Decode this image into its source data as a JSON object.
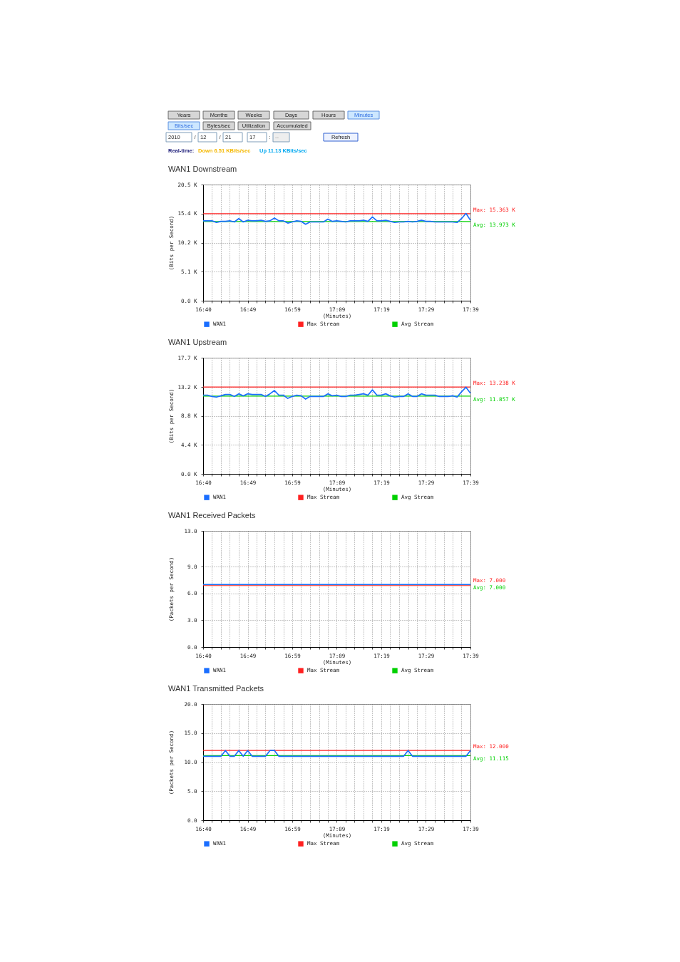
{
  "chart_data": [
    {
      "type": "other",
      "categories": [
        "Years",
        "Months",
        "Weeks",
        "Days",
        "Hours",
        "Minutes",
        "Bits/sec",
        "Bytes/sec",
        "Utilization",
        "Accumulated",
        "2010",
        "12",
        "21",
        "17",
        "--",
        "Refresh"
      ],
      "colors": [
        "#d6d6d6",
        "#d6d6d6",
        "#d6d6d6",
        "#d6d6d6",
        "#d6d6d6",
        "#cde7ff",
        "#cde7ff",
        "#d6d6d6",
        "#d6d6d6",
        "#d6d6d6",
        "#ffffff",
        "#ffffff",
        "#ffffff",
        "#ffffff",
        "#eeeeee",
        "#edf2ff"
      ],
      "annotations": [
        "/",
        "/",
        ":",
        "Real-time:",
        "Down 6.51 KBits/sec",
        "Up 11.13 KBits/sec"
      ]
    },
    {
      "type": "line",
      "title": "WAN1 Downstream",
      "xlabel": "(Minutes)",
      "ylabel": "(Bits per Second)",
      "xlim": [
        16.6592,
        17.6425
      ],
      "xticks": [
        {
          "value": 16.6592,
          "label": "16:40"
        },
        {
          "value": 16.6919,
          "label": null
        },
        {
          "value": 16.7247,
          "label": null
        },
        {
          "value": 16.7575,
          "label": null
        },
        {
          "value": 16.7903,
          "label": null
        },
        {
          "value": 16.8231,
          "label": "16:49"
        },
        {
          "value": 16.8558,
          "label": null
        },
        {
          "value": 16.8886,
          "label": null
        },
        {
          "value": 16.9214,
          "label": null
        },
        {
          "value": 16.9542,
          "label": null
        },
        {
          "value": 16.9869,
          "label": "16:59"
        },
        {
          "value": 17.0197,
          "label": null
        },
        {
          "value": 17.0525,
          "label": null
        },
        {
          "value": 17.0853,
          "label": null
        },
        {
          "value": 17.1181,
          "label": null
        },
        {
          "value": 17.1508,
          "label": "17:09"
        },
        {
          "value": 17.1836,
          "label": null
        },
        {
          "value": 17.2164,
          "label": null
        },
        {
          "value": 17.2492,
          "label": null
        },
        {
          "value": 17.2819,
          "label": null
        },
        {
          "value": 17.3147,
          "label": "17:19"
        },
        {
          "value": 17.3475,
          "label": null
        },
        {
          "value": 17.3803,
          "label": null
        },
        {
          "value": 17.4131,
          "label": null
        },
        {
          "value": 17.4458,
          "label": null
        },
        {
          "value": 17.4786,
          "label": "17:29"
        },
        {
          "value": 17.5114,
          "label": null
        },
        {
          "value": 17.5442,
          "label": null
        },
        {
          "value": 17.5769,
          "label": null
        },
        {
          "value": 17.6097,
          "label": null
        },
        {
          "value": 17.6425,
          "label": "17:39"
        }
      ],
      "ylim": [
        0,
        20.5
      ],
      "yticks": [
        {
          "value": 0,
          "label": "0.0 K"
        },
        {
          "value": 5.1,
          "label": "5.1 K"
        },
        {
          "value": 10.2,
          "label": "10.2 K"
        },
        {
          "value": 15.4,
          "label": "15.4 K"
        },
        {
          "value": 20.5,
          "label": "20.5 K"
        }
      ],
      "grid": true,
      "legend": "bottom",
      "x": [
        16.6592,
        16.6756,
        16.6919,
        16.7083,
        16.7247,
        16.7411,
        16.7575,
        16.7739,
        16.7903,
        16.8067,
        16.8231,
        16.8394,
        16.8558,
        16.8722,
        16.8886,
        16.905,
        16.9214,
        16.9378,
        16.9542,
        16.9706,
        16.9869,
        17.0033,
        17.0197,
        17.0361,
        17.0525,
        17.0689,
        17.0853,
        17.1017,
        17.1181,
        17.1344,
        17.1508,
        17.1672,
        17.1836,
        17.2,
        17.2164,
        17.2328,
        17.2492,
        17.2656,
        17.2819,
        17.2983,
        17.3147,
        17.3311,
        17.3475,
        17.3639,
        17.3803,
        17.3967,
        17.4131,
        17.4294,
        17.4458,
        17.4622,
        17.4786,
        17.495,
        17.5114,
        17.5278,
        17.5442,
        17.5606,
        17.5769,
        17.5933,
        17.6097,
        17.6261,
        17.6425
      ],
      "series": [
        {
          "name": "WAN1",
          "color": "#1a6eff",
          "values": [
            14.1,
            14.1,
            14.1,
            13.8,
            14.0,
            14.0,
            14.1,
            13.9,
            14.5,
            13.9,
            14.2,
            14.1,
            14.1,
            14.2,
            14.0,
            14.1,
            14.6,
            14.1,
            14.1,
            13.7,
            13.9,
            14.1,
            14.0,
            13.5,
            13.9,
            13.9,
            13.9,
            13.9,
            14.4,
            14.0,
            14.1,
            14.0,
            13.9,
            14.1,
            14.1,
            14.1,
            14.2,
            14.0,
            14.8,
            14.1,
            14.1,
            14.2,
            14.0,
            13.8,
            13.9,
            13.9,
            14.0,
            13.9,
            14.0,
            14.2,
            14.0,
            14.0,
            13.9,
            13.9,
            13.9,
            13.9,
            13.9,
            13.8,
            14.5,
            15.4,
            14.2
          ]
        },
        {
          "name": "Max Stream",
          "color": "#ff2020",
          "x": [
            16.6592,
            17.6425
          ],
          "values": [
            15.363,
            15.363
          ]
        },
        {
          "name": "Avg Stream",
          "color": "#00d000",
          "x": [
            16.6592,
            17.6425
          ],
          "values": [
            13.973,
            13.973
          ]
        }
      ],
      "annotations": [
        "Max: 15.363 K",
        "Avg: 13.973 K"
      ]
    },
    {
      "type": "line",
      "title": "WAN1 Upstream",
      "xlabel": "(Minutes)",
      "ylabel": "(Bits per Second)",
      "xlim": [
        16.6592,
        17.6425
      ],
      "xticks": [
        {
          "value": 16.6592,
          "label": "16:40"
        },
        {
          "value": 16.6919,
          "label": null
        },
        {
          "value": 16.7247,
          "label": null
        },
        {
          "value": 16.7575,
          "label": null
        },
        {
          "value": 16.7903,
          "label": null
        },
        {
          "value": 16.8231,
          "label": "16:49"
        },
        {
          "value": 16.8558,
          "label": null
        },
        {
          "value": 16.8886,
          "label": null
        },
        {
          "value": 16.9214,
          "label": null
        },
        {
          "value": 16.9542,
          "label": null
        },
        {
          "value": 16.9869,
          "label": "16:59"
        },
        {
          "value": 17.0197,
          "label": null
        },
        {
          "value": 17.0525,
          "label": null
        },
        {
          "value": 17.0853,
          "label": null
        },
        {
          "value": 17.1181,
          "label": null
        },
        {
          "value": 17.1508,
          "label": "17:09"
        },
        {
          "value": 17.1836,
          "label": null
        },
        {
          "value": 17.2164,
          "label": null
        },
        {
          "value": 17.2492,
          "label": null
        },
        {
          "value": 17.2819,
          "label": null
        },
        {
          "value": 17.3147,
          "label": "17:19"
        },
        {
          "value": 17.3475,
          "label": null
        },
        {
          "value": 17.3803,
          "label": null
        },
        {
          "value": 17.4131,
          "label": null
        },
        {
          "value": 17.4458,
          "label": null
        },
        {
          "value": 17.4786,
          "label": "17:29"
        },
        {
          "value": 17.5114,
          "label": null
        },
        {
          "value": 17.5442,
          "label": null
        },
        {
          "value": 17.5769,
          "label": null
        },
        {
          "value": 17.6097,
          "label": null
        },
        {
          "value": 17.6425,
          "label": "17:39"
        }
      ],
      "ylim": [
        0,
        17.7
      ],
      "yticks": [
        {
          "value": 0,
          "label": "0.0 K"
        },
        {
          "value": 4.4,
          "label": "4.4 K"
        },
        {
          "value": 8.8,
          "label": "8.8 K"
        },
        {
          "value": 13.2,
          "label": "13.2 K"
        },
        {
          "value": 17.7,
          "label": "17.7 K"
        }
      ],
      "grid": true,
      "legend": "bottom",
      "x": [
        16.6592,
        16.6756,
        16.6919,
        16.7083,
        16.7247,
        16.7411,
        16.7575,
        16.7739,
        16.7903,
        16.8067,
        16.8231,
        16.8394,
        16.8558,
        16.8722,
        16.8886,
        16.905,
        16.9214,
        16.9378,
        16.9542,
        16.9706,
        16.9869,
        17.0033,
        17.0197,
        17.0361,
        17.0525,
        17.0689,
        17.0853,
        17.1017,
        17.1181,
        17.1344,
        17.1508,
        17.1672,
        17.1836,
        17.2,
        17.2164,
        17.2328,
        17.2492,
        17.2656,
        17.2819,
        17.2983,
        17.3147,
        17.3311,
        17.3475,
        17.3639,
        17.3803,
        17.3967,
        17.4131,
        17.4294,
        17.4458,
        17.4622,
        17.4786,
        17.495,
        17.5114,
        17.5278,
        17.5442,
        17.5606,
        17.5769,
        17.5933,
        17.6097,
        17.6261,
        17.6425
      ],
      "series": [
        {
          "name": "WAN1",
          "color": "#1a6eff",
          "values": [
            12.0,
            12.0,
            11.8,
            11.7,
            11.9,
            12.1,
            12.1,
            11.8,
            12.2,
            11.9,
            12.2,
            12.1,
            12.1,
            12.1,
            11.8,
            12.2,
            12.7,
            12.0,
            12.0,
            11.5,
            11.8,
            12.0,
            11.9,
            11.4,
            11.8,
            11.8,
            11.8,
            11.8,
            12.2,
            11.9,
            12.0,
            11.8,
            11.8,
            12.0,
            12.0,
            12.1,
            12.2,
            12.0,
            12.8,
            12.0,
            12.0,
            12.2,
            11.9,
            11.7,
            11.8,
            11.8,
            12.2,
            11.8,
            11.8,
            12.2,
            12.0,
            12.0,
            12.0,
            11.8,
            11.8,
            11.8,
            11.9,
            11.7,
            12.5,
            13.2,
            12.3
          ]
        },
        {
          "name": "Max Stream",
          "color": "#ff2020",
          "x": [
            16.6592,
            17.6425
          ],
          "values": [
            13.238,
            13.238
          ]
        },
        {
          "name": "Avg Stream",
          "color": "#00d000",
          "x": [
            16.6592,
            17.6425
          ],
          "values": [
            11.857,
            11.857
          ]
        }
      ],
      "annotations": [
        "Max: 13.238 K",
        "Avg: 11.857 K"
      ]
    },
    {
      "type": "line",
      "title": "WAN1 Received Packets",
      "xlabel": "(Minutes)",
      "ylabel": "(Packets per Second)",
      "xlim": [
        16.6592,
        17.6425
      ],
      "xticks": [
        {
          "value": 16.6592,
          "label": "16:40"
        },
        {
          "value": 16.6919,
          "label": null
        },
        {
          "value": 16.7247,
          "label": null
        },
        {
          "value": 16.7575,
          "label": null
        },
        {
          "value": 16.7903,
          "label": null
        },
        {
          "value": 16.8231,
          "label": "16:49"
        },
        {
          "value": 16.8558,
          "label": null
        },
        {
          "value": 16.8886,
          "label": null
        },
        {
          "value": 16.9214,
          "label": null
        },
        {
          "value": 16.9542,
          "label": null
        },
        {
          "value": 16.9869,
          "label": "16:59"
        },
        {
          "value": 17.0197,
          "label": null
        },
        {
          "value": 17.0525,
          "label": null
        },
        {
          "value": 17.0853,
          "label": null
        },
        {
          "value": 17.1181,
          "label": null
        },
        {
          "value": 17.1508,
          "label": "17:09"
        },
        {
          "value": 17.1836,
          "label": null
        },
        {
          "value": 17.2164,
          "label": null
        },
        {
          "value": 17.2492,
          "label": null
        },
        {
          "value": 17.2819,
          "label": null
        },
        {
          "value": 17.3147,
          "label": "17:19"
        },
        {
          "value": 17.3475,
          "label": null
        },
        {
          "value": 17.3803,
          "label": null
        },
        {
          "value": 17.4131,
          "label": null
        },
        {
          "value": 17.4458,
          "label": null
        },
        {
          "value": 17.4786,
          "label": "17:29"
        },
        {
          "value": 17.5114,
          "label": null
        },
        {
          "value": 17.5442,
          "label": null
        },
        {
          "value": 17.5769,
          "label": null
        },
        {
          "value": 17.6097,
          "label": null
        },
        {
          "value": 17.6425,
          "label": "17:39"
        }
      ],
      "ylim": [
        0,
        13
      ],
      "yticks": [
        {
          "value": 0,
          "label": "0.0"
        },
        {
          "value": 3,
          "label": "3.0"
        },
        {
          "value": 6,
          "label": "6.0"
        },
        {
          "value": 9,
          "label": "9.0"
        },
        {
          "value": 13,
          "label": "13.0"
        }
      ],
      "grid": true,
      "legend": "bottom",
      "series": [
        {
          "name": "WAN1",
          "color": "#1a6eff",
          "x": [
            16.6592,
            17.6425
          ],
          "values": [
            7,
            7
          ]
        },
        {
          "name": "Max Stream",
          "color": "#ff2020",
          "x": [
            16.6592,
            17.6425
          ],
          "values": [
            7.0,
            7.0
          ]
        },
        {
          "name": "Avg Stream",
          "color": "#00d000",
          "values": [
            null,
            null
          ]
        }
      ],
      "annotations": [
        "Max: 7.000",
        "Avg: 7.000"
      ]
    },
    {
      "type": "line",
      "title": "WAN1 Transmitted Packets",
      "xlabel": "(Minutes)",
      "ylabel": "(Packets per Second)",
      "xlim": [
        16.6592,
        17.6425
      ],
      "xticks": [
        {
          "value": 16.6592,
          "label": "16:40"
        },
        {
          "value": 16.6919,
          "label": null
        },
        {
          "value": 16.7247,
          "label": null
        },
        {
          "value": 16.7575,
          "label": null
        },
        {
          "value": 16.7903,
          "label": null
        },
        {
          "value": 16.8231,
          "label": "16:49"
        },
        {
          "value": 16.8558,
          "label": null
        },
        {
          "value": 16.8886,
          "label": null
        },
        {
          "value": 16.9214,
          "label": null
        },
        {
          "value": 16.9542,
          "label": null
        },
        {
          "value": 16.9869,
          "label": "16:59"
        },
        {
          "value": 17.0197,
          "label": null
        },
        {
          "value": 17.0525,
          "label": null
        },
        {
          "value": 17.0853,
          "label": null
        },
        {
          "value": 17.1181,
          "label": null
        },
        {
          "value": 17.1508,
          "label": "17:09"
        },
        {
          "value": 17.1836,
          "label": null
        },
        {
          "value": 17.2164,
          "label": null
        },
        {
          "value": 17.2492,
          "label": null
        },
        {
          "value": 17.2819,
          "label": null
        },
        {
          "value": 17.3147,
          "label": "17:19"
        },
        {
          "value": 17.3475,
          "label": null
        },
        {
          "value": 17.3803,
          "label": null
        },
        {
          "value": 17.4131,
          "label": null
        },
        {
          "value": 17.4458,
          "label": null
        },
        {
          "value": 17.4786,
          "label": "17:29"
        },
        {
          "value": 17.5114,
          "label": null
        },
        {
          "value": 17.5442,
          "label": null
        },
        {
          "value": 17.5769,
          "label": null
        },
        {
          "value": 17.6097,
          "label": null
        },
        {
          "value": 17.6425,
          "label": "17:39"
        }
      ],
      "ylim": [
        0,
        20
      ],
      "yticks": [
        {
          "value": 0,
          "label": "0.0"
        },
        {
          "value": 5,
          "label": "5.0"
        },
        {
          "value": 10,
          "label": "10.0"
        },
        {
          "value": 15,
          "label": "15.0"
        },
        {
          "value": 20,
          "label": "20.0"
        }
      ],
      "grid": true,
      "legend": "bottom",
      "series": [
        {
          "name": "WAN1",
          "color": "#1a6eff",
          "x": [
            16.6592,
            16.7247,
            16.7411,
            16.7575,
            16.7739,
            16.7903,
            16.8067,
            16.8231,
            16.8394,
            16.8886,
            16.905,
            16.9214,
            16.9378,
            17.3967,
            17.4131,
            17.4294,
            17.6261,
            17.6425
          ],
          "values": [
            11,
            11,
            12,
            11,
            11,
            12,
            11,
            12,
            11,
            11,
            12,
            12,
            11,
            11,
            12,
            11,
            11,
            12
          ]
        },
        {
          "name": "Max Stream",
          "color": "#ff2020",
          "x": [
            16.6592,
            17.6425
          ],
          "values": [
            12.0,
            12.0
          ]
        },
        {
          "name": "Avg Stream",
          "color": "#00d000",
          "x": [
            16.6592,
            17.6425
          ],
          "values": [
            11.115,
            11.115
          ]
        }
      ],
      "annotations": [
        "Max: 12.000",
        "Avg: 11.115"
      ]
    }
  ]
}
